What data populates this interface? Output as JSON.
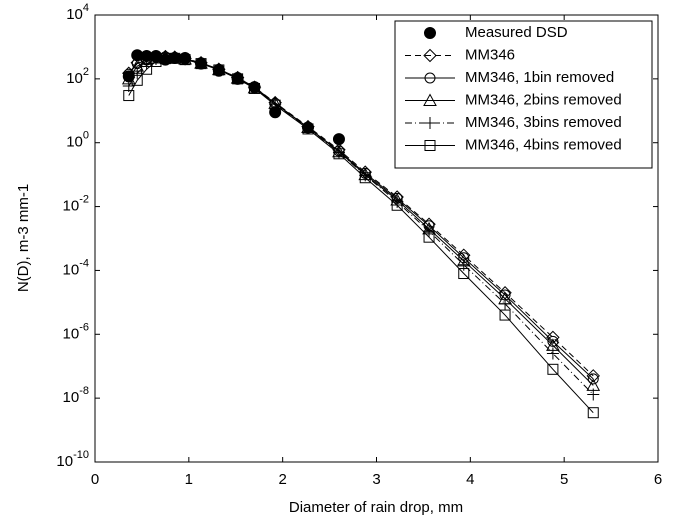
{
  "chart_data": {
    "type": "line",
    "xlabel": "Diameter of rain drop, mm",
    "ylabel": "N(D), m-3 mm-1",
    "x": [
      0.36,
      0.45,
      0.55,
      0.65,
      0.75,
      0.85,
      0.96,
      1.13,
      1.32,
      1.52,
      1.7,
      1.92,
      2.27,
      2.6,
      2.88,
      3.22,
      3.56,
      3.93,
      4.37,
      4.88,
      5.31
    ],
    "xlim": [
      0,
      6
    ],
    "xticks": [
      0,
      1,
      2,
      3,
      4,
      5,
      6
    ],
    "ylim": [
      1e-10,
      10000
    ],
    "yscale": "log",
    "yticks": [
      {
        "value": 1e-10,
        "label": "10^-10"
      },
      {
        "value": 1e-08,
        "label": "10^-8"
      },
      {
        "value": 1e-06,
        "label": "10^-6"
      },
      {
        "value": 0.0001,
        "label": "10^-4"
      },
      {
        "value": 0.01,
        "label": "10^-2"
      },
      {
        "value": 1,
        "label": "10^0"
      },
      {
        "value": 100,
        "label": "10^2"
      },
      {
        "value": 10000,
        "label": "10^4"
      }
    ],
    "legend": "upper right",
    "series": [
      {
        "name": "Measured DSD",
        "color": "#000000",
        "marker": "dot",
        "linestyle": "none",
        "values": [
          120,
          550,
          520,
          520,
          400,
          450,
          450,
          300,
          180,
          100,
          55,
          9,
          3,
          1.3,
          null,
          null,
          null,
          null,
          null,
          null,
          null
        ]
      },
      {
        "name": "MM346",
        "color": "#000000",
        "marker": "diamond",
        "linestyle": "dashed",
        "values": [
          150,
          320,
          400,
          480,
          500,
          480,
          430,
          320,
          200,
          110,
          55,
          18,
          3.2,
          0.6,
          0.12,
          0.02,
          0.0028,
          0.0003,
          2e-05,
          8e-07,
          5e-08
        ]
      },
      {
        "name": "MM346, 1bin removed",
        "color": "#000000",
        "marker": "circle",
        "linestyle": "solid",
        "values": [
          140,
          300,
          390,
          470,
          490,
          470,
          420,
          320,
          200,
          110,
          55,
          17,
          3.0,
          0.55,
          0.11,
          0.018,
          0.0025,
          0.00025,
          1.7e-05,
          6e-07,
          4e-08
        ]
      },
      {
        "name": "MM346, 2bins removed",
        "color": "#000000",
        "marker": "triangle",
        "linestyle": "solid",
        "values": [
          100,
          250,
          350,
          450,
          480,
          460,
          420,
          310,
          195,
          105,
          52,
          17,
          3.0,
          0.52,
          0.1,
          0.016,
          0.002,
          0.0002,
          1.3e-05,
          4.5e-07,
          2.5e-08
        ]
      },
      {
        "name": "MM346, 3bins removed",
        "color": "#000000",
        "marker": "plus",
        "linestyle": "dashdot",
        "values": [
          60,
          150,
          300,
          420,
          460,
          450,
          410,
          310,
          195,
          105,
          52,
          16,
          2.9,
          0.5,
          0.095,
          0.014,
          0.0017,
          0.00015,
          9e-06,
          2.5e-07,
          1.3e-08
        ]
      },
      {
        "name": "MM346, 4bins removed",
        "color": "#000000",
        "marker": "square",
        "linestyle": "solid",
        "values": [
          30,
          90,
          200,
          350,
          430,
          440,
          400,
          300,
          190,
          100,
          50,
          15,
          2.7,
          0.45,
          0.08,
          0.011,
          0.0011,
          8e-05,
          4e-06,
          8e-08,
          3.5e-09
        ]
      }
    ]
  }
}
